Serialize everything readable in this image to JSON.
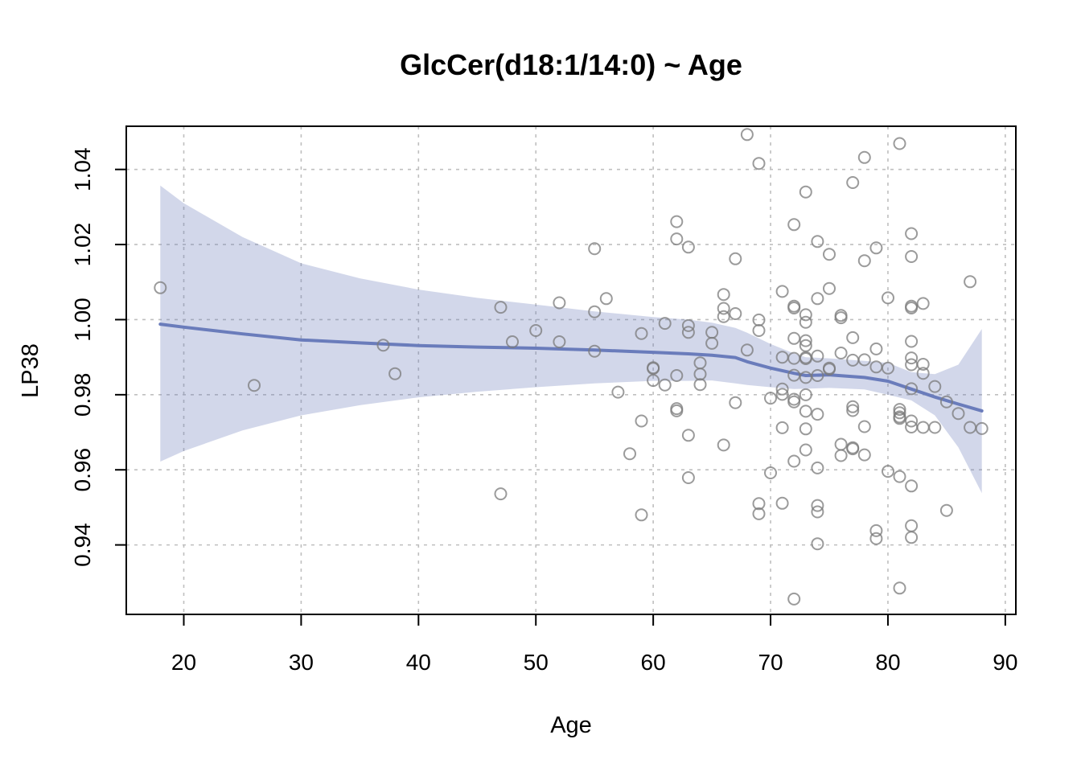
{
  "chart_data": {
    "type": "scatter",
    "title": "GlcCer(d18:1/14:0) ~ Age",
    "xlabel": "Age",
    "ylabel": "LP38",
    "xlim": [
      15.1,
      90.9
    ],
    "ylim": [
      0.9215,
      1.0515
    ],
    "x_ticks": [
      20,
      30,
      40,
      50,
      60,
      70,
      80,
      90
    ],
    "y_ticks": [
      0.94,
      0.96,
      0.98,
      1.0,
      1.02,
      1.04
    ],
    "x_tick_labels": [
      "20",
      "30",
      "40",
      "50",
      "60",
      "70",
      "80",
      "90"
    ],
    "y_tick_labels": [
      "0.94",
      "0.96",
      "0.98",
      "1.00",
      "1.02",
      "1.04"
    ],
    "grid": true,
    "colors": {
      "fit": "#6a7cbb",
      "band": "#6a7cbb",
      "points": "#7a7a7a"
    },
    "points": [
      [
        18,
        1.0085
      ],
      [
        26,
        0.9825
      ],
      [
        37,
        0.9932
      ],
      [
        38,
        0.9856
      ],
      [
        47,
        1.0033
      ],
      [
        47,
        0.9536
      ],
      [
        48,
        0.9941
      ],
      [
        50,
        0.9971
      ],
      [
        52,
        1.0045
      ],
      [
        52,
        0.9941
      ],
      [
        55,
        1.0189
      ],
      [
        55,
        1.0021
      ],
      [
        55,
        0.9916
      ],
      [
        56,
        1.0056
      ],
      [
        57,
        0.9807
      ],
      [
        58,
        0.9643
      ],
      [
        59,
        0.9963
      ],
      [
        59,
        0.973
      ],
      [
        59,
        0.948
      ],
      [
        60,
        0.9872
      ],
      [
        60,
        0.987
      ],
      [
        60,
        0.9838
      ],
      [
        61,
        0.999
      ],
      [
        61,
        0.9826
      ],
      [
        62,
        1.0261
      ],
      [
        62,
        1.0215
      ],
      [
        62,
        0.9851
      ],
      [
        62,
        0.9763
      ],
      [
        62,
        0.9757
      ],
      [
        63,
        1.0193
      ],
      [
        63,
        0.9984
      ],
      [
        63,
        0.9966
      ],
      [
        63,
        0.9692
      ],
      [
        63,
        0.9579
      ],
      [
        64,
        0.9885
      ],
      [
        64,
        0.9855
      ],
      [
        64,
        0.9827
      ],
      [
        65,
        0.9966
      ],
      [
        65,
        0.9937
      ],
      [
        66,
        1.0067
      ],
      [
        66,
        1.003
      ],
      [
        66,
        1.0008
      ],
      [
        66,
        0.9666
      ],
      [
        67,
        1.0162
      ],
      [
        67,
        1.0016
      ],
      [
        67,
        0.9779
      ],
      [
        68,
        1.0493
      ],
      [
        68,
        0.9919
      ],
      [
        69,
        1.0416
      ],
      [
        69,
        0.9999
      ],
      [
        69,
        0.9971
      ],
      [
        69,
        0.951
      ],
      [
        69,
        0.9483
      ],
      [
        70,
        0.9791
      ],
      [
        70,
        0.9592
      ],
      [
        71,
        1.0075
      ],
      [
        71,
        0.99
      ],
      [
        71,
        0.9815
      ],
      [
        71,
        0.9801
      ],
      [
        71,
        0.9712
      ],
      [
        71,
        0.9511
      ],
      [
        72,
        1.0253
      ],
      [
        72,
        1.0036
      ],
      [
        72,
        1.0031
      ],
      [
        72,
        0.995
      ],
      [
        72,
        0.9897
      ],
      [
        72,
        0.9852
      ],
      [
        72,
        0.9788
      ],
      [
        72,
        0.9781
      ],
      [
        72,
        0.9623
      ],
      [
        72,
        0.9256
      ],
      [
        73,
        1.034
      ],
      [
        73,
        1.0013
      ],
      [
        73,
        0.9993
      ],
      [
        73,
        0.9944
      ],
      [
        73,
        0.9931
      ],
      [
        73,
        0.9899
      ],
      [
        73,
        0.9896
      ],
      [
        73,
        0.9846
      ],
      [
        73,
        0.98
      ],
      [
        73,
        0.9756
      ],
      [
        73,
        0.9709
      ],
      [
        73,
        0.9653
      ],
      [
        74,
        1.0208
      ],
      [
        74,
        1.0056
      ],
      [
        74,
        0.9903
      ],
      [
        74,
        0.9851
      ],
      [
        74,
        0.9748
      ],
      [
        74,
        0.9605
      ],
      [
        74,
        0.9505
      ],
      [
        74,
        0.9488
      ],
      [
        74,
        0.9403
      ],
      [
        75,
        1.0174
      ],
      [
        75,
        1.0083
      ],
      [
        75,
        0.9871
      ],
      [
        75,
        0.9868
      ],
      [
        76,
        1.0011
      ],
      [
        76,
        1.0005
      ],
      [
        76,
        0.9911
      ],
      [
        76,
        0.9668
      ],
      [
        76,
        0.9638
      ],
      [
        77,
        1.0365
      ],
      [
        77,
        0.9952
      ],
      [
        77,
        0.9892
      ],
      [
        77,
        0.9768
      ],
      [
        77,
        0.9758
      ],
      [
        77,
        0.9659
      ],
      [
        77,
        0.9656
      ],
      [
        78,
        1.0432
      ],
      [
        78,
        1.0157
      ],
      [
        78,
        0.9893
      ],
      [
        78,
        0.9715
      ],
      [
        78,
        0.964
      ],
      [
        79,
        1.0191
      ],
      [
        79,
        0.9922
      ],
      [
        79,
        0.9874
      ],
      [
        79,
        0.9438
      ],
      [
        79,
        0.9417
      ],
      [
        80,
        1.0058
      ],
      [
        80,
        0.9871
      ],
      [
        80,
        0.9596
      ],
      [
        81,
        1.0469
      ],
      [
        81,
        0.9761
      ],
      [
        81,
        0.9752
      ],
      [
        81,
        0.9741
      ],
      [
        81,
        0.9737
      ],
      [
        81,
        0.9582
      ],
      [
        81,
        0.9285
      ],
      [
        82,
        1.0229
      ],
      [
        82,
        1.0168
      ],
      [
        82,
        1.0036
      ],
      [
        82,
        1.0031
      ],
      [
        82,
        0.9942
      ],
      [
        82,
        0.9898
      ],
      [
        82,
        0.988
      ],
      [
        82,
        0.9816
      ],
      [
        82,
        0.973
      ],
      [
        82,
        0.9714
      ],
      [
        82,
        0.9557
      ],
      [
        82,
        0.9451
      ],
      [
        82,
        0.942
      ],
      [
        83,
        1.0043
      ],
      [
        83,
        0.9881
      ],
      [
        83,
        0.9857
      ],
      [
        83,
        0.9713
      ],
      [
        84,
        0.9822
      ],
      [
        84,
        0.9713
      ],
      [
        85,
        0.9781
      ],
      [
        85,
        0.9492
      ],
      [
        86,
        0.975
      ],
      [
        87,
        1.0101
      ],
      [
        87,
        0.9713
      ],
      [
        88,
        0.971
      ]
    ],
    "fit": {
      "x": [
        18,
        20,
        25,
        30,
        35,
        40,
        45,
        50,
        55,
        60,
        63,
        65,
        67,
        68,
        70,
        72,
        73,
        75,
        78,
        80,
        82,
        84,
        86,
        88
      ],
      "y": [
        0.9988,
        0.998,
        0.9962,
        0.9946,
        0.9938,
        0.9931,
        0.9927,
        0.9924,
        0.9919,
        0.9913,
        0.9909,
        0.9905,
        0.9899,
        0.9888,
        0.9871,
        0.9857,
        0.9851,
        0.9853,
        0.9846,
        0.9836,
        0.9815,
        0.9794,
        0.9775,
        0.9757
      ],
      "lower": [
        0.9622,
        0.965,
        0.9705,
        0.9745,
        0.9772,
        0.9793,
        0.9808,
        0.982,
        0.983,
        0.9837,
        0.9837,
        0.9838,
        0.983,
        0.9826,
        0.982,
        0.9815,
        0.9816,
        0.9818,
        0.9814,
        0.98,
        0.9785,
        0.9745,
        0.966,
        0.9538
      ],
      "upper": [
        1.0357,
        1.031,
        1.022,
        1.015,
        1.011,
        1.008,
        1.0058,
        1.004,
        1.0022,
        1.0007,
        1.0,
        0.9992,
        0.9978,
        0.9965,
        0.9935,
        0.991,
        0.99,
        0.9897,
        0.989,
        0.9885,
        0.986,
        0.9855,
        0.988,
        0.9975
      ]
    }
  }
}
